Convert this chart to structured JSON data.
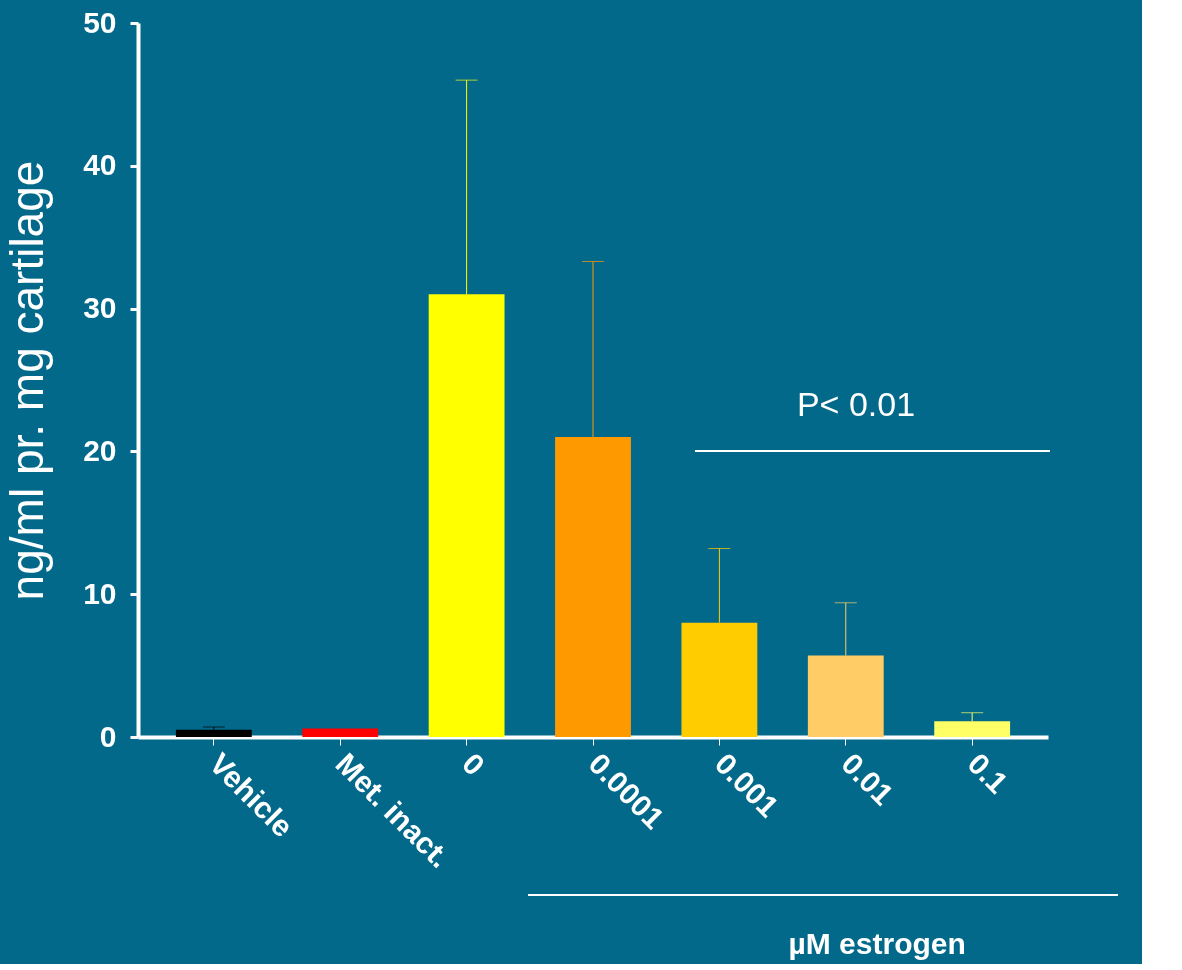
{
  "chart_data": {
    "type": "bar",
    "ylabel": "ng/ml pr. mg cartilage",
    "xlabel": "µM estrogen",
    "categories": [
      "Vehicle",
      "Met. inact.",
      "0",
      "0.0001",
      "0.001",
      "0.01",
      "0.1"
    ],
    "values": [
      0.5,
      0.6,
      31,
      21,
      8,
      5.7,
      1.1
    ],
    "colors": [
      "#000000",
      "#ff0000",
      "#ffff00",
      "#ff9900",
      "#ffcc00",
      "#ffcc66",
      "#ffff66"
    ],
    "errors": [
      [
        0.5,
        0.7
      ],
      null,
      [
        31,
        46
      ],
      [
        21,
        33.3
      ],
      [
        8,
        13.2
      ],
      [
        5.7,
        9.4
      ],
      [
        1.1,
        1.7
      ]
    ],
    "ylim": [
      0,
      50
    ],
    "yticks": [
      0,
      10,
      20,
      30,
      40,
      50
    ],
    "grid": false,
    "annotations": [
      "P< 0.01"
    ]
  }
}
